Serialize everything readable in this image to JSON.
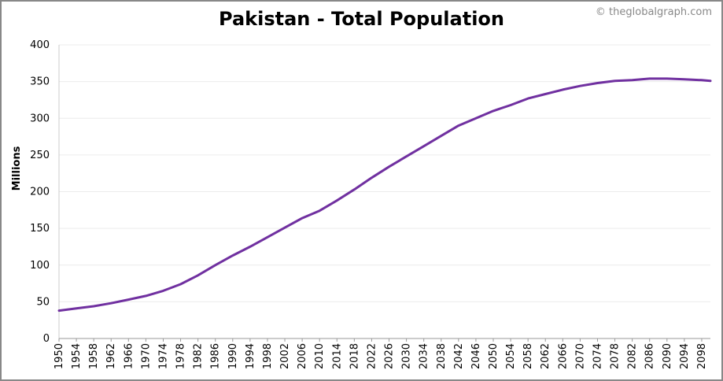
{
  "chart_data": {
    "type": "line",
    "title": "Pakistan - Total Population",
    "credit": "© theglobalgraph.com",
    "xlabel": "",
    "ylabel": "Millions",
    "ylim": [
      0,
      400
    ],
    "yticks": [
      0,
      50,
      100,
      150,
      200,
      250,
      300,
      350,
      400
    ],
    "xlim": [
      1950,
      2100
    ],
    "xticks": [
      1950,
      1954,
      1958,
      1962,
      1966,
      1970,
      1974,
      1978,
      1982,
      1986,
      1990,
      1994,
      1998,
      2002,
      2006,
      2010,
      2014,
      2018,
      2022,
      2026,
      2030,
      2034,
      2038,
      2042,
      2046,
      2050,
      2054,
      2058,
      2062,
      2066,
      2070,
      2074,
      2078,
      2082,
      2086,
      2090,
      2094,
      2098
    ],
    "grid": true,
    "legend": "none",
    "series": [
      {
        "color": "#7030a0",
        "x": [
          1950,
          1954,
          1958,
          1962,
          1966,
          1970,
          1974,
          1978,
          1982,
          1986,
          1990,
          1994,
          1998,
          2002,
          2006,
          2010,
          2014,
          2018,
          2022,
          2026,
          2030,
          2034,
          2038,
          2042,
          2046,
          2050,
          2054,
          2058,
          2062,
          2066,
          2070,
          2074,
          2078,
          2082,
          2086,
          2090,
          2094,
          2098,
          2100
        ],
        "y": [
          38,
          41,
          44,
          48,
          53,
          58,
          65,
          74,
          86,
          100,
          113,
          125,
          138,
          151,
          164,
          174,
          188,
          203,
          219,
          234,
          248,
          262,
          276,
          290,
          300,
          310,
          318,
          327,
          333,
          339,
          344,
          348,
          351,
          352,
          354,
          354,
          353,
          352,
          351
        ]
      }
    ]
  }
}
